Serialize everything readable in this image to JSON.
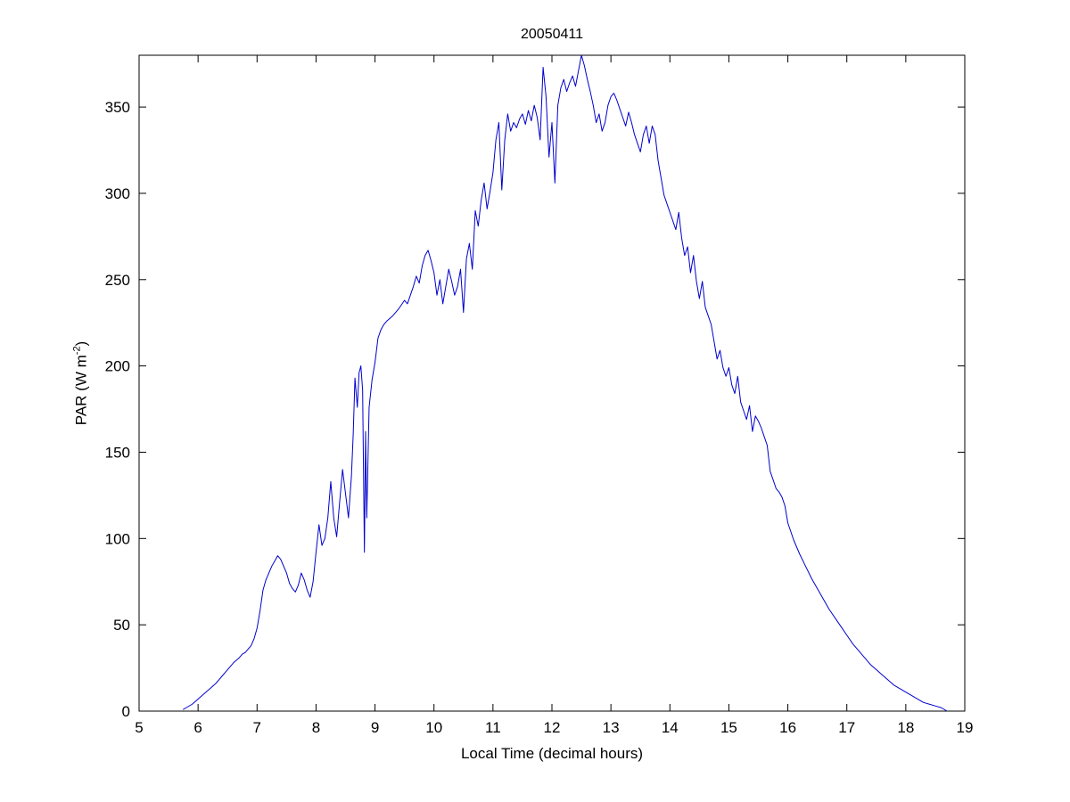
{
  "figure": {
    "background": "#ffffff",
    "axes_color": "#000000"
  },
  "chart_data": {
    "type": "line",
    "title": "20050411",
    "xlabel": "Local Time (decimal hours)",
    "ylabel": "PAR (W m-2)",
    "ylabel_parts": {
      "base": "PAR (W m",
      "sup": "-2",
      "close": ")"
    },
    "xlim": [
      5,
      19
    ],
    "ylim": [
      0,
      380
    ],
    "xticks": [
      5,
      6,
      7,
      8,
      9,
      10,
      11,
      12,
      13,
      14,
      15,
      16,
      17,
      18,
      19
    ],
    "yticks": [
      0,
      50,
      100,
      150,
      200,
      250,
      300,
      350
    ],
    "grid": false,
    "legend": null,
    "line_color": "#0000cd",
    "series": [
      {
        "name": "PAR",
        "points": [
          [
            5.75,
            1
          ],
          [
            5.8,
            2
          ],
          [
            5.9,
            4
          ],
          [
            6.0,
            7
          ],
          [
            6.1,
            10
          ],
          [
            6.2,
            13
          ],
          [
            6.3,
            16
          ],
          [
            6.4,
            20
          ],
          [
            6.5,
            24
          ],
          [
            6.6,
            28
          ],
          [
            6.7,
            31
          ],
          [
            6.75,
            33
          ],
          [
            6.8,
            34
          ],
          [
            6.85,
            36
          ],
          [
            6.9,
            38
          ],
          [
            6.95,
            42
          ],
          [
            7.0,
            48
          ],
          [
            7.05,
            58
          ],
          [
            7.1,
            70
          ],
          [
            7.15,
            76
          ],
          [
            7.2,
            80
          ],
          [
            7.25,
            84
          ],
          [
            7.3,
            87
          ],
          [
            7.35,
            90
          ],
          [
            7.4,
            88
          ],
          [
            7.45,
            84
          ],
          [
            7.5,
            80
          ],
          [
            7.55,
            74
          ],
          [
            7.6,
            71
          ],
          [
            7.65,
            69
          ],
          [
            7.7,
            73
          ],
          [
            7.75,
            80
          ],
          [
            7.8,
            76
          ],
          [
            7.85,
            70
          ],
          [
            7.9,
            66
          ],
          [
            7.95,
            75
          ],
          [
            8.0,
            92
          ],
          [
            8.05,
            108
          ],
          [
            8.1,
            96
          ],
          [
            8.15,
            100
          ],
          [
            8.2,
            112
          ],
          [
            8.25,
            133
          ],
          [
            8.3,
            112
          ],
          [
            8.35,
            101
          ],
          [
            8.4,
            121
          ],
          [
            8.45,
            140
          ],
          [
            8.5,
            126
          ],
          [
            8.55,
            112
          ],
          [
            8.6,
            136
          ],
          [
            8.63,
            160
          ],
          [
            8.66,
            193
          ],
          [
            8.7,
            176
          ],
          [
            8.73,
            196
          ],
          [
            8.76,
            200
          ],
          [
            8.79,
            186
          ],
          [
            8.82,
            92
          ],
          [
            8.84,
            162
          ],
          [
            8.86,
            112
          ],
          [
            8.9,
            176
          ],
          [
            8.95,
            192
          ],
          [
            9.0,
            202
          ],
          [
            9.05,
            216
          ],
          [
            9.1,
            221
          ],
          [
            9.15,
            224
          ],
          [
            9.2,
            226
          ],
          [
            9.3,
            229
          ],
          [
            9.4,
            233
          ],
          [
            9.5,
            238
          ],
          [
            9.55,
            236
          ],
          [
            9.6,
            241
          ],
          [
            9.65,
            246
          ],
          [
            9.7,
            252
          ],
          [
            9.75,
            248
          ],
          [
            9.8,
            258
          ],
          [
            9.85,
            264
          ],
          [
            9.9,
            267
          ],
          [
            9.95,
            261
          ],
          [
            10.0,
            254
          ],
          [
            10.05,
            241
          ],
          [
            10.1,
            250
          ],
          [
            10.15,
            236
          ],
          [
            10.2,
            246
          ],
          [
            10.25,
            256
          ],
          [
            10.3,
            249
          ],
          [
            10.35,
            241
          ],
          [
            10.4,
            246
          ],
          [
            10.45,
            256
          ],
          [
            10.5,
            231
          ],
          [
            10.55,
            262
          ],
          [
            10.6,
            271
          ],
          [
            10.65,
            256
          ],
          [
            10.7,
            290
          ],
          [
            10.75,
            281
          ],
          [
            10.8,
            296
          ],
          [
            10.85,
            306
          ],
          [
            10.9,
            291
          ],
          [
            10.95,
            301
          ],
          [
            11.0,
            312
          ],
          [
            11.05,
            331
          ],
          [
            11.1,
            341
          ],
          [
            11.15,
            302
          ],
          [
            11.2,
            331
          ],
          [
            11.25,
            346
          ],
          [
            11.3,
            336
          ],
          [
            11.35,
            341
          ],
          [
            11.4,
            338
          ],
          [
            11.45,
            343
          ],
          [
            11.5,
            346
          ],
          [
            11.55,
            340
          ],
          [
            11.6,
            348
          ],
          [
            11.65,
            342
          ],
          [
            11.7,
            351
          ],
          [
            11.75,
            344
          ],
          [
            11.8,
            331
          ],
          [
            11.85,
            373
          ],
          [
            11.9,
            356
          ],
          [
            11.95,
            321
          ],
          [
            12.0,
            341
          ],
          [
            12.05,
            306
          ],
          [
            12.1,
            351
          ],
          [
            12.15,
            361
          ],
          [
            12.2,
            366
          ],
          [
            12.25,
            359
          ],
          [
            12.3,
            364
          ],
          [
            12.35,
            368
          ],
          [
            12.4,
            362
          ],
          [
            12.45,
            371
          ],
          [
            12.5,
            380
          ],
          [
            12.55,
            374
          ],
          [
            12.6,
            366
          ],
          [
            12.65,
            359
          ],
          [
            12.7,
            351
          ],
          [
            12.75,
            341
          ],
          [
            12.8,
            346
          ],
          [
            12.85,
            336
          ],
          [
            12.9,
            341
          ],
          [
            12.95,
            351
          ],
          [
            13.0,
            356
          ],
          [
            13.05,
            358
          ],
          [
            13.1,
            354
          ],
          [
            13.15,
            349
          ],
          [
            13.2,
            344
          ],
          [
            13.25,
            339
          ],
          [
            13.3,
            347
          ],
          [
            13.35,
            341
          ],
          [
            13.4,
            334
          ],
          [
            13.45,
            329
          ],
          [
            13.5,
            324
          ],
          [
            13.55,
            334
          ],
          [
            13.6,
            339
          ],
          [
            13.65,
            329
          ],
          [
            13.7,
            339
          ],
          [
            13.75,
            334
          ],
          [
            13.8,
            319
          ],
          [
            13.85,
            309
          ],
          [
            13.9,
            299
          ],
          [
            13.95,
            294
          ],
          [
            14.0,
            289
          ],
          [
            14.05,
            284
          ],
          [
            14.1,
            279
          ],
          [
            14.15,
            289
          ],
          [
            14.2,
            274
          ],
          [
            14.25,
            264
          ],
          [
            14.3,
            269
          ],
          [
            14.35,
            254
          ],
          [
            14.4,
            264
          ],
          [
            14.45,
            249
          ],
          [
            14.5,
            239
          ],
          [
            14.55,
            249
          ],
          [
            14.6,
            234
          ],
          [
            14.65,
            229
          ],
          [
            14.7,
            224
          ],
          [
            14.75,
            214
          ],
          [
            14.8,
            204
          ],
          [
            14.85,
            209
          ],
          [
            14.9,
            199
          ],
          [
            14.95,
            194
          ],
          [
            15.0,
            199
          ],
          [
            15.05,
            189
          ],
          [
            15.1,
            184
          ],
          [
            15.15,
            194
          ],
          [
            15.2,
            179
          ],
          [
            15.25,
            174
          ],
          [
            15.3,
            169
          ],
          [
            15.35,
            177
          ],
          [
            15.4,
            162
          ],
          [
            15.45,
            171
          ],
          [
            15.5,
            168
          ],
          [
            15.55,
            164
          ],
          [
            15.6,
            159
          ],
          [
            15.65,
            154
          ],
          [
            15.7,
            139
          ],
          [
            15.75,
            134
          ],
          [
            15.8,
            129
          ],
          [
            15.85,
            127
          ],
          [
            15.9,
            124
          ],
          [
            15.95,
            119
          ],
          [
            16.0,
            109
          ],
          [
            16.1,
            99
          ],
          [
            16.2,
            91
          ],
          [
            16.3,
            84
          ],
          [
            16.4,
            77
          ],
          [
            16.5,
            71
          ],
          [
            16.6,
            65
          ],
          [
            16.7,
            59
          ],
          [
            16.8,
            54
          ],
          [
            16.9,
            49
          ],
          [
            17.0,
            44
          ],
          [
            17.1,
            39
          ],
          [
            17.2,
            35
          ],
          [
            17.3,
            31
          ],
          [
            17.4,
            27
          ],
          [
            17.5,
            24
          ],
          [
            17.6,
            21
          ],
          [
            17.7,
            18
          ],
          [
            17.8,
            15
          ],
          [
            17.9,
            13
          ],
          [
            18.0,
            11
          ],
          [
            18.1,
            9
          ],
          [
            18.2,
            7
          ],
          [
            18.3,
            5
          ],
          [
            18.4,
            4
          ],
          [
            18.5,
            3
          ],
          [
            18.6,
            2
          ],
          [
            18.7,
            0
          ]
        ]
      }
    ]
  }
}
